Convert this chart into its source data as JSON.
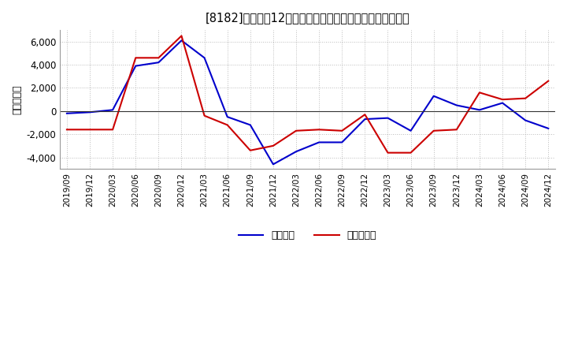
{
  "title": "[8182]　利益の12か月移動合計の対前年同期増減額の推移",
  "ylabel": "（百万円）",
  "background_color": "#ffffff",
  "plot_bg_color": "#ffffff",
  "grid_color": "#aaaaaa",
  "x_labels": [
    "2019/09",
    "2019/12",
    "2020/03",
    "2020/06",
    "2020/09",
    "2020/12",
    "2021/03",
    "2021/06",
    "2021/09",
    "2021/12",
    "2022/03",
    "2022/06",
    "2022/09",
    "2022/12",
    "2023/03",
    "2023/06",
    "2023/09",
    "2023/12",
    "2024/03",
    "2024/06",
    "2024/09",
    "2024/12"
  ],
  "keijo_rieki": [
    -200,
    -100,
    100,
    3900,
    4200,
    6100,
    4600,
    -500,
    -1200,
    -4600,
    -3500,
    -2700,
    -2700,
    -700,
    -600,
    -1700,
    1300,
    500,
    100,
    700,
    -800,
    -1500
  ],
  "touki_jun_rieki": [
    -1600,
    -1600,
    -1600,
    4600,
    4600,
    6500,
    -400,
    -1200,
    -3400,
    -3000,
    -1700,
    -1600,
    -1700,
    -300,
    -3600,
    -3600,
    -1700,
    -1600,
    1600,
    1000,
    1100,
    2600
  ],
  "keijo_color": "#0000cc",
  "touki_color": "#cc0000",
  "ylim_min": -5000,
  "ylim_max": 7000,
  "yticks": [
    -4000,
    -2000,
    0,
    2000,
    4000,
    6000
  ],
  "legend_keijo": "経常利益",
  "legend_touki": "当期純利益",
  "line_width": 1.5
}
